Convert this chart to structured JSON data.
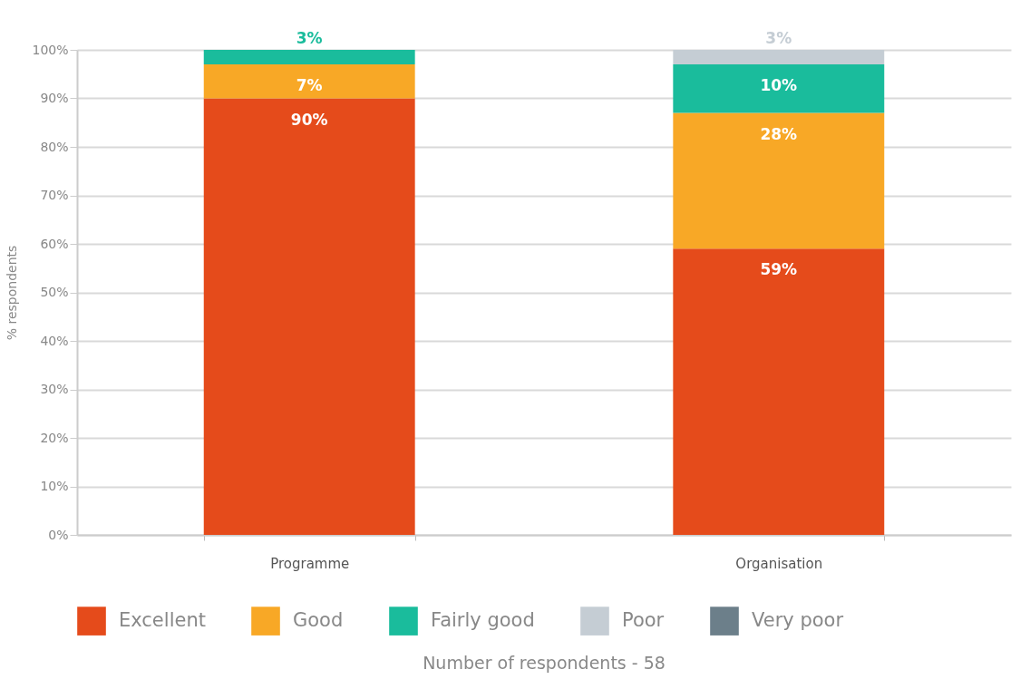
{
  "chart_data": {
    "type": "bar",
    "stacked": true,
    "categories": [
      "Programme",
      "Organisation"
    ],
    "series": [
      {
        "name": "Excellent",
        "color": "#e54b1b",
        "values": [
          90,
          59
        ],
        "value_labels": [
          "90%",
          "59%"
        ]
      },
      {
        "name": "Good",
        "color": "#f8a826",
        "values": [
          7,
          28
        ],
        "value_labels": [
          "7%",
          "28%"
        ]
      },
      {
        "name": "Fairly good",
        "color": "#1abc9c",
        "values": [
          3,
          10
        ],
        "value_labels": [
          "3%",
          "10%"
        ]
      },
      {
        "name": "Poor",
        "color": "#c5cdd4",
        "values": [
          0,
          3
        ],
        "value_labels": [
          null,
          "3%"
        ]
      },
      {
        "name": "Very poor",
        "color": "#6c7f8a",
        "values": [
          0,
          0
        ],
        "value_labels": [
          null,
          null
        ]
      }
    ],
    "ylabel": "% respondents",
    "ylim": [
      0,
      100
    ],
    "yticks": [
      {
        "value": 0,
        "label": "0%"
      },
      {
        "value": 10,
        "label": "10%"
      },
      {
        "value": 20,
        "label": "20%"
      },
      {
        "value": 30,
        "label": "30%"
      },
      {
        "value": 40,
        "label": "40%"
      },
      {
        "value": 50,
        "label": "50%"
      },
      {
        "value": 60,
        "label": "60%"
      },
      {
        "value": 70,
        "label": "70%"
      },
      {
        "value": 80,
        "label": "80%"
      },
      {
        "value": 90,
        "label": "90%"
      },
      {
        "value": 100,
        "label": "100%"
      }
    ],
    "grid": "y",
    "legend": "bottom",
    "annotations": [
      "Number of respondents - 58"
    ]
  }
}
